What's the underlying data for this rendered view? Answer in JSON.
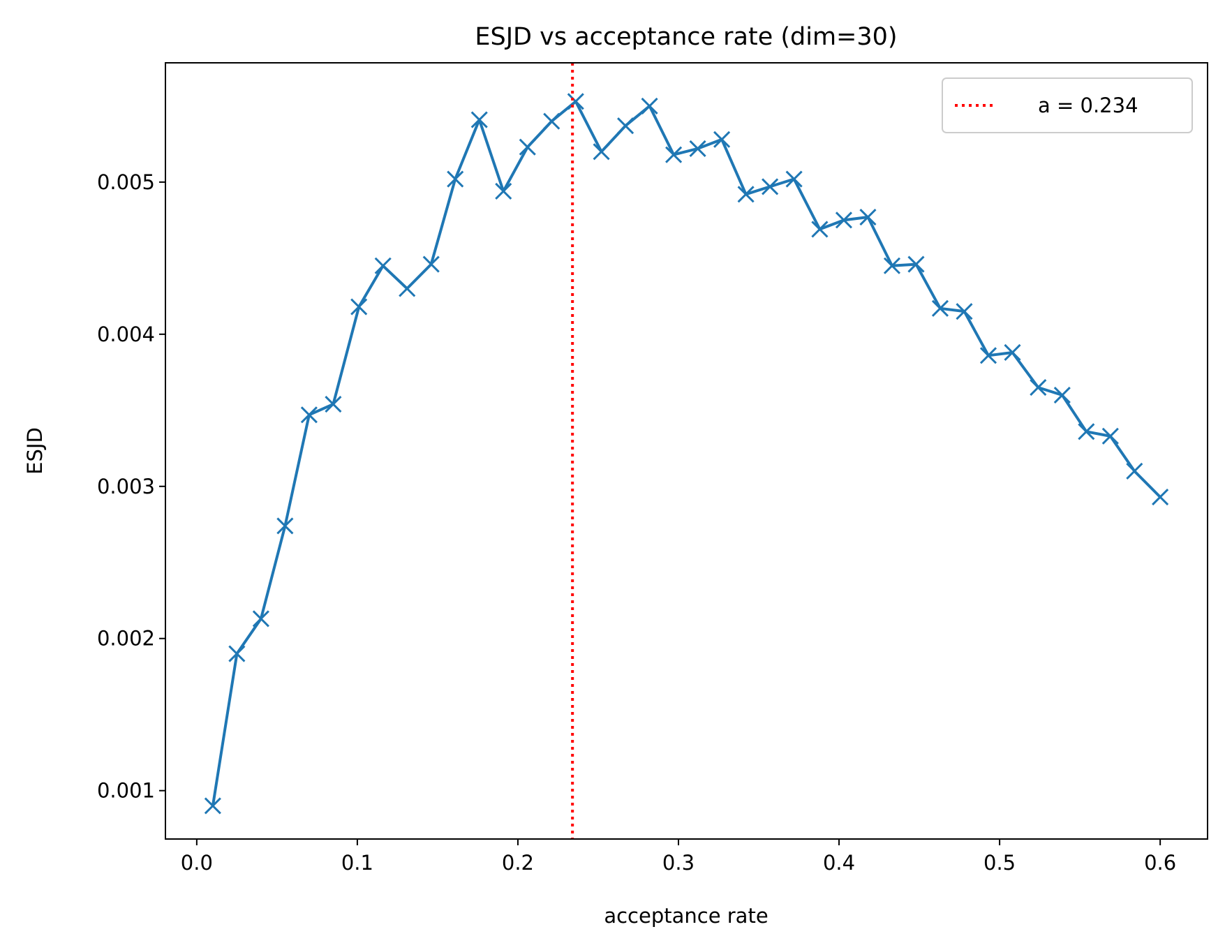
{
  "chart_data": {
    "type": "line",
    "title": "ESJD vs acceptance rate (dim=30)",
    "xlabel": "acceptance rate",
    "ylabel": "ESJD",
    "xlim": [
      -0.0195,
      0.6295
    ],
    "ylim": [
      0.000682,
      0.005784
    ],
    "x_ticks": [
      0.0,
      0.1,
      0.2,
      0.3,
      0.4,
      0.5,
      0.6
    ],
    "x_tick_labels": [
      "0.0",
      "0.1",
      "0.2",
      "0.3",
      "0.4",
      "0.5",
      "0.6"
    ],
    "y_ticks": [
      0.001,
      0.002,
      0.003,
      0.004,
      0.005
    ],
    "y_tick_labels": [
      "0.001",
      "0.002",
      "0.003",
      "0.004",
      "0.005"
    ],
    "grid": false,
    "legend_position": "top-right",
    "series": [
      {
        "name": "ESJD",
        "color": "#1f77b4",
        "marker": "x",
        "x": [
          0.01,
          0.025,
          0.04,
          0.055,
          0.07,
          0.085,
          0.101,
          0.116,
          0.131,
          0.146,
          0.161,
          0.176,
          0.191,
          0.206,
          0.221,
          0.236,
          0.252,
          0.267,
          0.282,
          0.297,
          0.312,
          0.327,
          0.342,
          0.357,
          0.372,
          0.388,
          0.403,
          0.418,
          0.433,
          0.448,
          0.463,
          0.478,
          0.493,
          0.508,
          0.524,
          0.539,
          0.554,
          0.569,
          0.584,
          0.6
        ],
        "y": [
          0.0009,
          0.0019,
          0.00213,
          0.00274,
          0.00347,
          0.00354,
          0.00418,
          0.00445,
          0.0043,
          0.00446,
          0.00502,
          0.00541,
          0.00494,
          0.00523,
          0.0054,
          0.00553,
          0.0052,
          0.00537,
          0.0055,
          0.00518,
          0.00522,
          0.00528,
          0.00492,
          0.00497,
          0.00502,
          0.00469,
          0.00475,
          0.00477,
          0.00445,
          0.00446,
          0.00417,
          0.00415,
          0.00386,
          0.00388,
          0.00365,
          0.0036,
          0.00336,
          0.00333,
          0.0031,
          0.00293
        ]
      }
    ],
    "reference_line": {
      "label": "a = 0.234",
      "x": 0.234,
      "color": "#ff0000",
      "style": "dotted"
    }
  }
}
